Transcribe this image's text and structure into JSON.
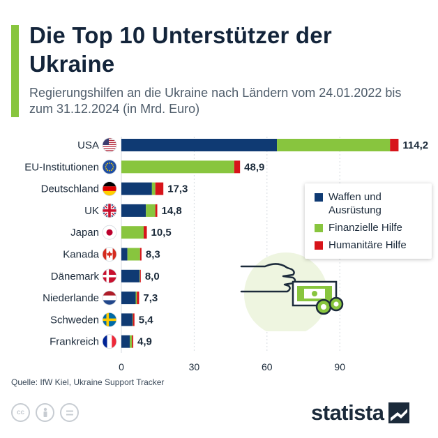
{
  "header": {
    "title": "Die Top 10 Unterstützer der Ukraine",
    "subtitle": "Regierungshilfen an die Ukraine nach Ländern vom 24.01.2022 bis zum 31.12.2024 (in Mrd. Euro)"
  },
  "colors": {
    "accent": "#88c53e",
    "weapons": "#0f3a73",
    "financial": "#88c53e",
    "humanitarian": "#d7141a"
  },
  "legend": {
    "items": [
      {
        "label": "Waffen und Ausrüstung",
        "color": "#0f3a73"
      },
      {
        "label": "Finanzielle Hilfe",
        "color": "#88c53e"
      },
      {
        "label": "Humanitäre Hilfe",
        "color": "#d7141a"
      }
    ]
  },
  "chart_data": {
    "type": "bar",
    "orientation": "horizontal",
    "stacked": true,
    "categories": [
      "USA",
      "EU-Institutionen",
      "Deutschland",
      "UK",
      "Japan",
      "Kanada",
      "Dänemark",
      "Niederlande",
      "Schweden",
      "Frankreich"
    ],
    "flags": [
      "flag-us-icon",
      "flag-eu-icon",
      "flag-de-icon",
      "flag-uk-icon",
      "flag-jp-icon",
      "flag-ca-icon",
      "flag-dk-icon",
      "flag-nl-icon",
      "flag-se-icon",
      "flag-fr-icon"
    ],
    "series": [
      {
        "name": "Waffen und Ausrüstung",
        "values": [
          64.1,
          0,
          12.6,
          10.1,
          0,
          2.5,
          7.5,
          5.9,
          4.6,
          3.5
        ]
      },
      {
        "name": "Finanzielle Hilfe",
        "values": [
          46.6,
          46.5,
          1.4,
          3.9,
          9.2,
          5.2,
          0.2,
          0.5,
          0.2,
          0.9
        ]
      },
      {
        "name": "Humanitäre Hilfe",
        "values": [
          3.5,
          2.4,
          3.3,
          0.8,
          1.3,
          0.6,
          0.3,
          0.9,
          0.6,
          0.5
        ]
      }
    ],
    "totals": [
      "114,2",
      "48,9",
      "17,3",
      "14,8",
      "10,5",
      "8,3",
      "8,0",
      "7,3",
      "5,4",
      "4,9"
    ],
    "xlim": [
      0,
      120
    ],
    "ticks": [
      "0",
      "30",
      "60",
      "90"
    ],
    "grid": true,
    "legend_position": "right"
  },
  "footer": {
    "source": "Quelle: IfW Kiel, Ukraine Support Tracker",
    "brand": "statista",
    "cc_icons": [
      "cc-icon",
      "by-icon",
      "nd-icon"
    ]
  }
}
